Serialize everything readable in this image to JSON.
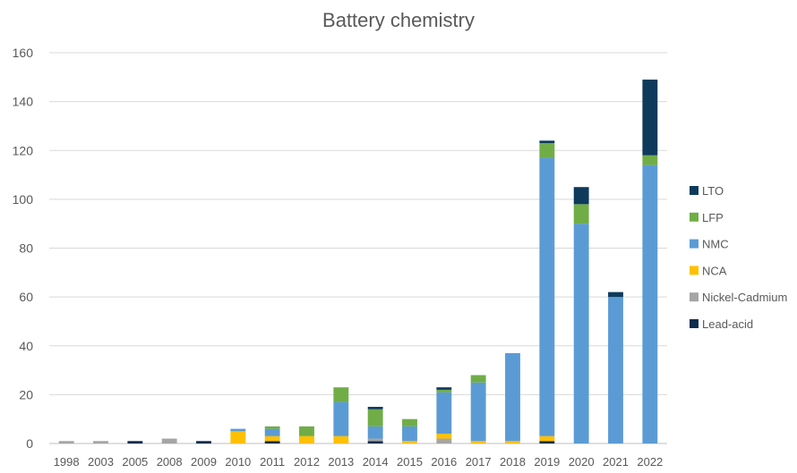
{
  "chart_data": {
    "type": "bar",
    "stacked": true,
    "title": "Battery chemistry",
    "xlabel": "",
    "ylabel": "",
    "ylim": [
      0,
      160
    ],
    "yticks": [
      0,
      20,
      40,
      60,
      80,
      100,
      120,
      140,
      160
    ],
    "grid": true,
    "legend_position": "right",
    "categories": [
      "1998",
      "2003",
      "2005",
      "2008",
      "2009",
      "2010",
      "2011",
      "2012",
      "2013",
      "2014",
      "2015",
      "2016",
      "2017",
      "2018",
      "2019",
      "2020",
      "2021",
      "2022"
    ],
    "series": [
      {
        "name": "Lead-acid",
        "color": "#0d2d4e",
        "values": [
          0,
          0,
          1,
          0,
          1,
          0,
          1,
          0,
          0,
          1,
          0,
          0,
          0,
          0,
          1,
          0,
          0,
          0
        ]
      },
      {
        "name": "Nickel-Cadmium",
        "color": "#a5a5a5",
        "values": [
          1,
          1,
          0,
          2,
          0,
          0,
          0,
          0,
          0,
          1,
          0,
          2,
          0,
          0,
          0,
          0,
          0,
          0
        ]
      },
      {
        "name": "NCA",
        "color": "#ffc000",
        "values": [
          0,
          0,
          0,
          0,
          0,
          5,
          2,
          3,
          3,
          0,
          1,
          2,
          1,
          1,
          2,
          0,
          0,
          0
        ]
      },
      {
        "name": "NMC",
        "color": "#5b9bd5",
        "values": [
          0,
          0,
          0,
          0,
          0,
          1,
          3,
          0,
          14,
          5,
          6,
          17,
          24,
          36,
          114,
          90,
          60,
          114
        ]
      },
      {
        "name": "LFP",
        "color": "#70ad47",
        "values": [
          0,
          0,
          0,
          0,
          0,
          0,
          1,
          4,
          6,
          7,
          3,
          1,
          3,
          0,
          6,
          8,
          0,
          4
        ]
      },
      {
        "name": "LTO",
        "color": "#0e3a5c",
        "values": [
          0,
          0,
          0,
          0,
          0,
          0,
          0,
          0,
          0,
          1,
          0,
          1,
          0,
          0,
          1,
          7,
          2,
          31
        ]
      }
    ],
    "legend_order": [
      "LTO",
      "LFP",
      "NMC",
      "NCA",
      "Nickel-Cadmium",
      "Lead-acid"
    ]
  }
}
